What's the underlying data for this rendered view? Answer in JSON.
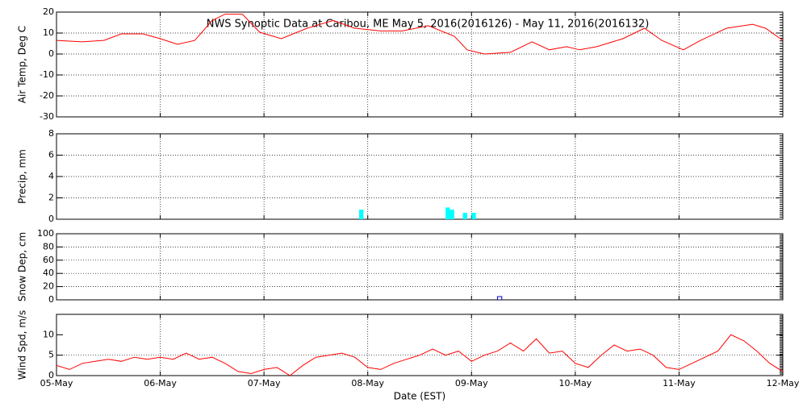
{
  "chart_data": [
    {
      "type": "line",
      "title": "NWS Synoptic Data at Caribou, ME   May  5, 2016(2016126) - May 11, 2016(2016132)",
      "y_label": "Air Temp, Deg C",
      "series": [
        {
          "color": "#ff0000",
          "x": [
            0,
            6,
            11,
            15,
            20,
            24,
            28,
            32,
            36,
            39,
            43,
            47,
            52,
            58,
            64,
            69,
            75,
            80,
            86,
            92,
            95,
            99,
            105,
            110,
            114,
            118,
            121,
            125,
            131,
            136,
            140,
            145,
            149,
            155,
            161,
            164,
            168
          ],
          "values": [
            6.5,
            5.8,
            6.5,
            9.6,
            9.6,
            7.3,
            4.6,
            6.5,
            16,
            19,
            19,
            10.4,
            7.3,
            12.3,
            16,
            12.3,
            11,
            11,
            13.5,
            8.5,
            2,
            0,
            0.8,
            5.8,
            2,
            3.5,
            2,
            3.5,
            7.3,
            12.3,
            6.5,
            2,
            6.5,
            12.3,
            14.2,
            12.3,
            6.5
          ]
        }
      ],
      "xlim": [
        0,
        168
      ],
      "xticks": [
        0,
        24,
        48,
        72,
        96,
        120,
        144,
        168
      ],
      "ylim": [
        -30,
        20
      ],
      "yticks": [
        -30,
        -20,
        -10,
        0,
        10,
        20
      ],
      "grid": true
    },
    {
      "type": "bar",
      "y_label": "Precip, mm",
      "series": [
        {
          "color": "#00ffff",
          "x": [
            70,
            90,
            91,
            94,
            96
          ],
          "values": [
            0.9,
            1.1,
            0.9,
            0.6,
            0.6
          ]
        }
      ],
      "xlim": [
        0,
        168
      ],
      "xticks": [
        0,
        24,
        48,
        72,
        96,
        120,
        144,
        168
      ],
      "ylim": [
        0,
        8
      ],
      "yticks": [
        0,
        2,
        4,
        6,
        8
      ],
      "grid": true
    },
    {
      "type": "bar",
      "y_label": "Snow Dep, cm",
      "series": [
        {
          "color": "#0000cc",
          "x": [
            102
          ],
          "values": [
            0
          ]
        }
      ],
      "xlim": [
        0,
        168
      ],
      "xticks": [
        0,
        24,
        48,
        72,
        96,
        120,
        144,
        168
      ],
      "ylim": [
        0,
        100
      ],
      "yticks": [
        0,
        20,
        40,
        60,
        80,
        100
      ],
      "grid": true
    },
    {
      "type": "line",
      "y_label": "Wind Spd, m/s",
      "x_label": "Date (EST)",
      "series": [
        {
          "color": "#ff0000",
          "x": [
            0,
            3,
            6,
            9,
            12,
            15,
            18,
            21,
            24,
            27,
            30,
            33,
            36,
            39,
            42,
            45,
            48,
            51,
            54,
            57,
            60,
            63,
            66,
            69,
            72,
            75,
            78,
            81,
            84,
            87,
            90,
            93,
            96,
            99,
            102,
            105,
            108,
            111,
            114,
            117,
            120,
            123,
            126,
            129,
            132,
            135,
            138,
            141,
            144,
            147,
            150,
            153,
            156,
            159,
            162,
            165,
            168
          ],
          "values": [
            2.5,
            1.5,
            3,
            3.5,
            4,
            3.5,
            4.5,
            4,
            4.5,
            4,
            5.5,
            4,
            4.5,
            3,
            1,
            0.5,
            1.5,
            2,
            0,
            2.5,
            4.5,
            5,
            5.5,
            4.5,
            2,
            1.5,
            3,
            4,
            5,
            6.5,
            5,
            6,
            3.5,
            5,
            6,
            8,
            6,
            9,
            5.5,
            6,
            3,
            2,
            5,
            7.5,
            6,
            6.5,
            5,
            2,
            1.5,
            3,
            4.5,
            6,
            10,
            8.5,
            6,
            3,
            1
          ]
        }
      ],
      "xlim": [
        0,
        168
      ],
      "xticks": [
        {
          "value": 0,
          "label": "05-May"
        },
        {
          "value": 24,
          "label": "06-May"
        },
        {
          "value": 48,
          "label": "07-May"
        },
        {
          "value": 72,
          "label": "08-May"
        },
        {
          "value": 96,
          "label": "09-May"
        },
        {
          "value": 120,
          "label": "10-May"
        },
        {
          "value": 144,
          "label": "11-May"
        },
        {
          "value": 168,
          "label": "12-May"
        }
      ],
      "ylim": [
        0,
        15
      ],
      "yticks": [
        0,
        5,
        10
      ],
      "grid": true
    }
  ]
}
